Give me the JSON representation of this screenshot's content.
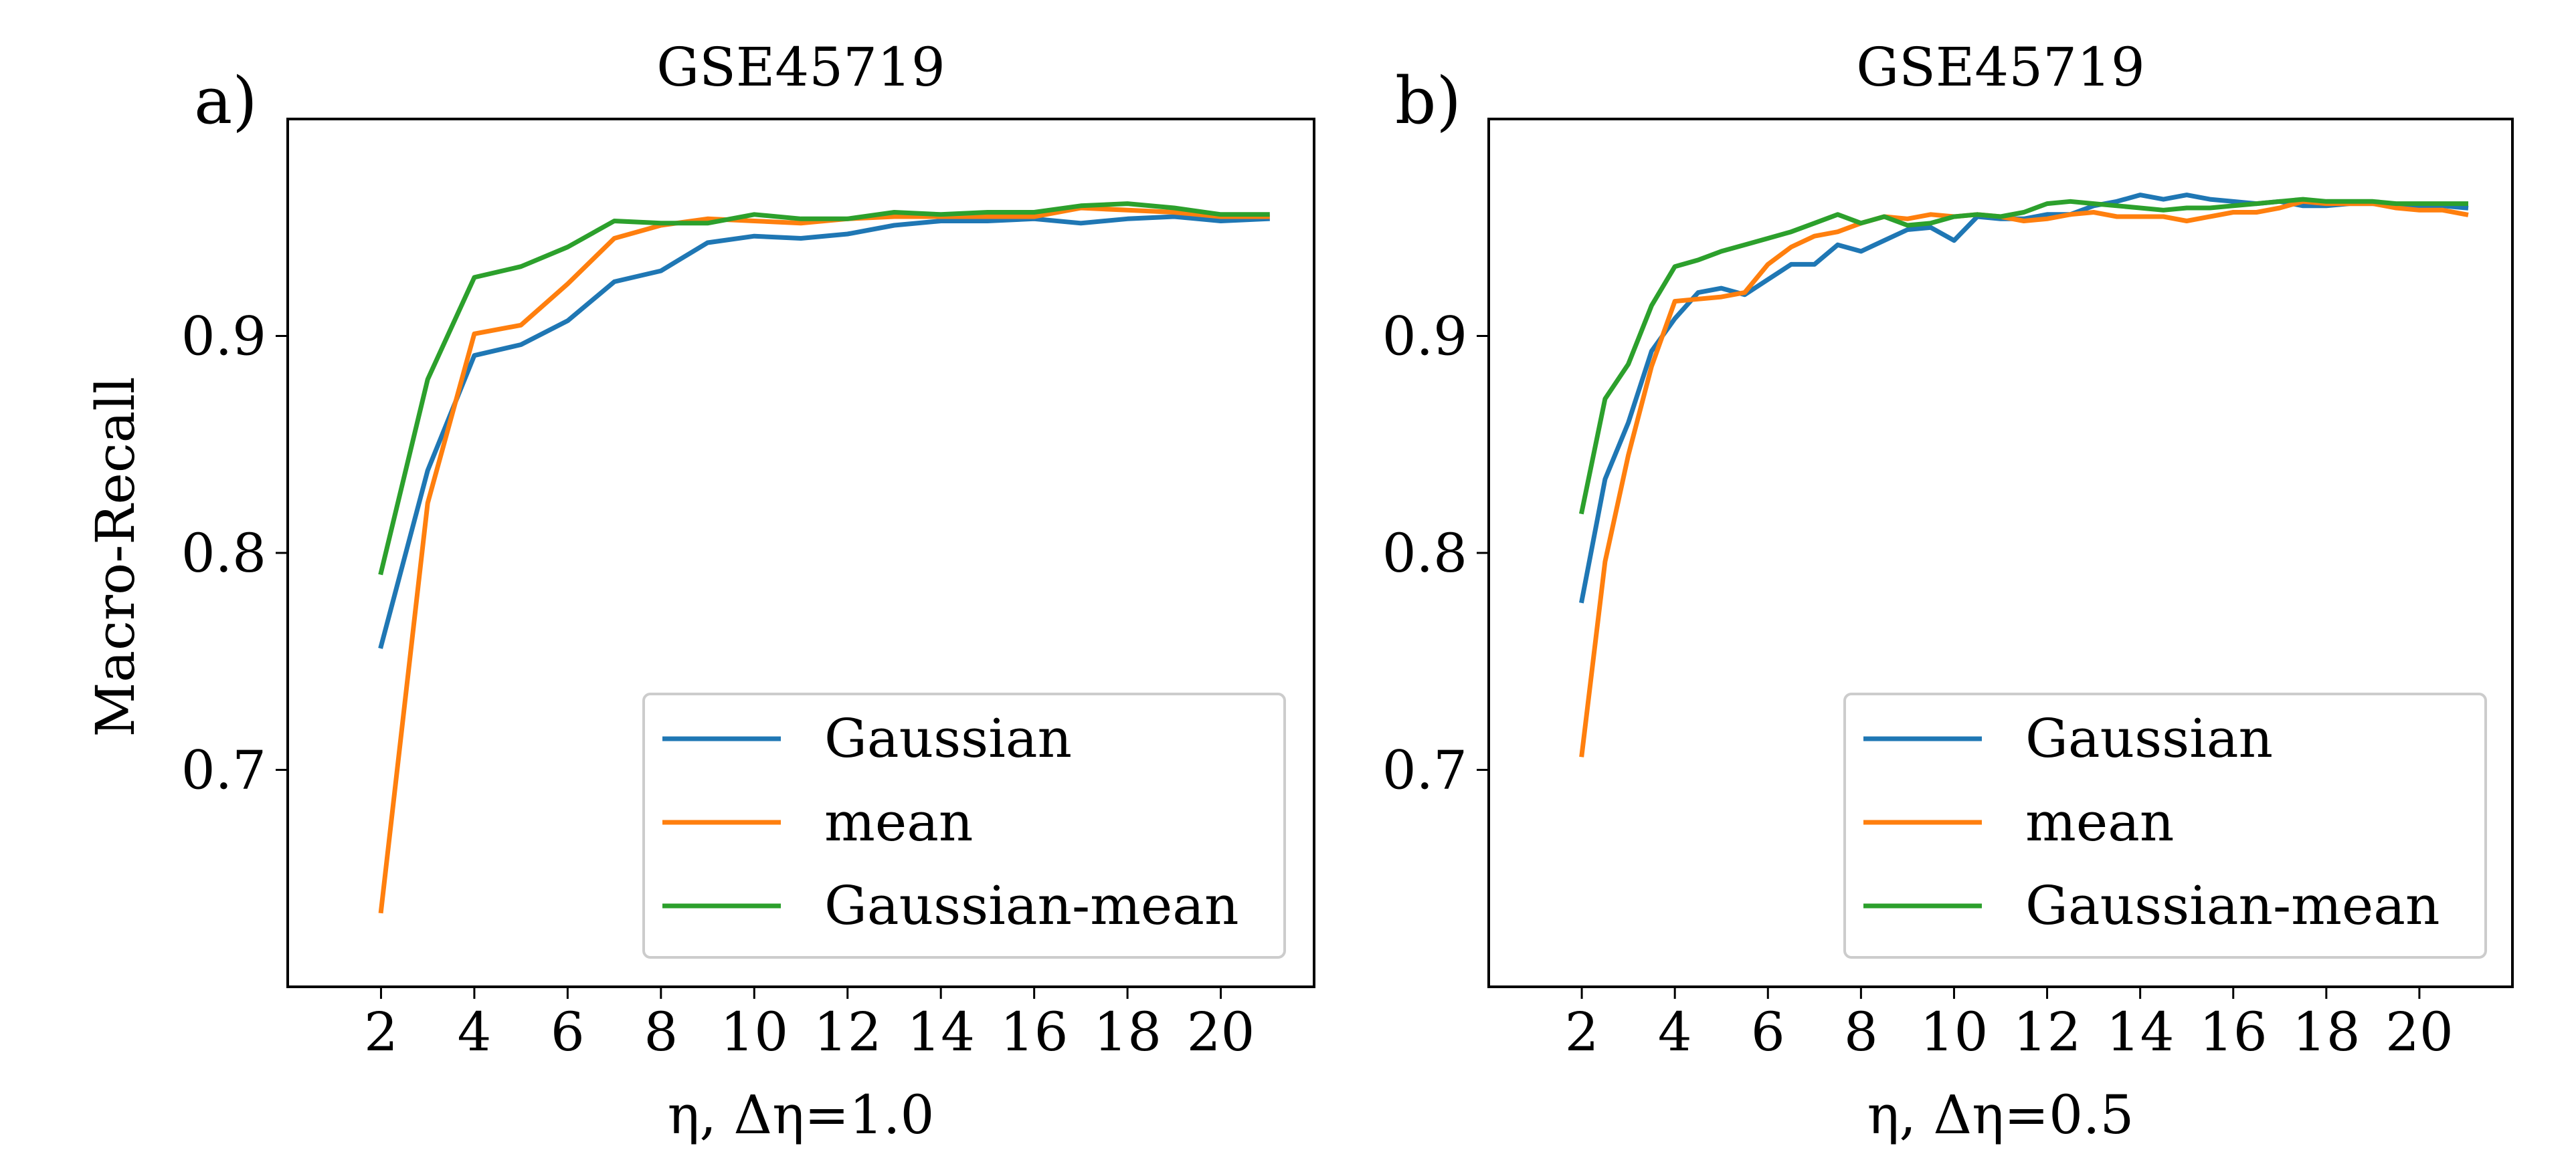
{
  "chart_data": [
    {
      "panel_label": "a)",
      "type": "line",
      "title": "GSE45719",
      "xlabel": "η, Δη=1.0",
      "ylabel": "Macro-Recall",
      "xlim": [
        0,
        22
      ],
      "ylim": [
        0.6,
        1.0
      ],
      "xticks": [
        2,
        4,
        6,
        8,
        10,
        12,
        14,
        16,
        18,
        20
      ],
      "yticks": [
        0.7,
        0.8,
        0.9
      ],
      "ytick_labels": [
        "0.7",
        "0.8",
        "0.9"
      ],
      "legend_position": "lower-right",
      "x": [
        2,
        3,
        4,
        5,
        6,
        7,
        8,
        9,
        10,
        11,
        12,
        13,
        14,
        15,
        16,
        17,
        18,
        19,
        20,
        21
      ],
      "series": [
        {
          "name": "Gaussian",
          "color": "#1f77b4",
          "values": [
            0.757,
            0.838,
            0.891,
            0.896,
            0.907,
            0.925,
            0.93,
            0.943,
            0.946,
            0.945,
            0.947,
            0.951,
            0.953,
            0.953,
            0.954,
            0.952,
            0.954,
            0.955,
            0.953,
            0.954
          ]
        },
        {
          "name": "mean",
          "color": "#ff7f0e",
          "values": [
            0.635,
            0.823,
            0.901,
            0.905,
            0.924,
            0.945,
            0.951,
            0.954,
            0.953,
            0.952,
            0.954,
            0.955,
            0.955,
            0.955,
            0.955,
            0.959,
            0.958,
            0.957,
            0.955,
            0.955
          ]
        },
        {
          "name": "Gaussian-mean",
          "color": "#2ca02c",
          "values": [
            0.791,
            0.88,
            0.927,
            0.932,
            0.941,
            0.953,
            0.952,
            0.952,
            0.956,
            0.954,
            0.954,
            0.957,
            0.956,
            0.957,
            0.957,
            0.96,
            0.961,
            0.959,
            0.956,
            0.956
          ]
        }
      ]
    },
    {
      "panel_label": "b)",
      "type": "line",
      "title": "GSE45719",
      "xlabel": "η, Δη=0.5",
      "ylabel": "",
      "xlim": [
        0,
        22
      ],
      "ylim": [
        0.6,
        1.0
      ],
      "xticks": [
        2,
        4,
        6,
        8,
        10,
        12,
        14,
        16,
        18,
        20
      ],
      "yticks": [
        0.7,
        0.8,
        0.9
      ],
      "ytick_labels": [
        "0.7",
        "0.8",
        "0.9"
      ],
      "legend_position": "lower-right",
      "x": [
        2,
        2.5,
        3,
        3.5,
        4,
        4.5,
        5,
        5.5,
        6,
        6.5,
        7,
        7.5,
        8,
        8.5,
        9,
        9.5,
        10,
        10.5,
        11,
        11.5,
        12,
        12.5,
        13,
        13.5,
        14,
        14.5,
        15,
        15.5,
        16,
        16.5,
        17,
        17.5,
        18,
        18.5,
        19,
        19.5,
        20,
        20.5,
        21
      ],
      "series": [
        {
          "name": "Gaussian",
          "color": "#1f77b4",
          "values": [
            0.778,
            0.834,
            0.86,
            0.893,
            0.908,
            0.92,
            0.922,
            0.919,
            0.926,
            0.933,
            0.933,
            0.942,
            0.939,
            0.944,
            0.949,
            0.95,
            0.944,
            0.955,
            0.954,
            0.954,
            0.956,
            0.956,
            0.96,
            0.962,
            0.965,
            0.963,
            0.965,
            0.963,
            0.962,
            0.961,
            0.962,
            0.96,
            0.96,
            0.961,
            0.961,
            0.96,
            0.96,
            0.96,
            0.959
          ]
        },
        {
          "name": "mean",
          "color": "#ff7f0e",
          "values": [
            0.707,
            0.796,
            0.845,
            0.886,
            0.916,
            0.917,
            0.918,
            0.92,
            0.933,
            0.941,
            0.946,
            0.948,
            0.952,
            0.955,
            0.954,
            0.956,
            0.955,
            0.956,
            0.955,
            0.953,
            0.954,
            0.956,
            0.957,
            0.955,
            0.955,
            0.955,
            0.953,
            0.955,
            0.957,
            0.957,
            0.959,
            0.962,
            0.961,
            0.961,
            0.961,
            0.959,
            0.958,
            0.958,
            0.956
          ]
        },
        {
          "name": "Gaussian-mean",
          "color": "#2ca02c",
          "values": [
            0.819,
            0.871,
            0.887,
            0.914,
            0.932,
            0.935,
            0.939,
            0.942,
            0.945,
            0.948,
            0.952,
            0.956,
            0.952,
            0.955,
            0.951,
            0.952,
            0.955,
            0.956,
            0.955,
            0.957,
            0.961,
            0.962,
            0.961,
            0.96,
            0.959,
            0.958,
            0.959,
            0.959,
            0.96,
            0.961,
            0.962,
            0.963,
            0.962,
            0.962,
            0.962,
            0.961,
            0.961,
            0.961,
            0.961
          ]
        }
      ]
    }
  ]
}
